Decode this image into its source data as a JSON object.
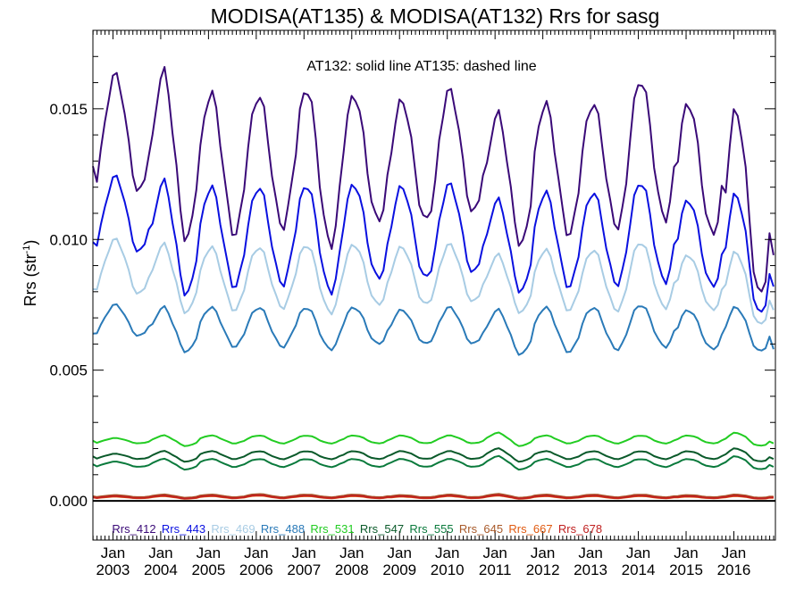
{
  "chart_data": {
    "type": "line",
    "title": "MODISA(AT135) & MODISA(AT132)  Rrs for sasg",
    "annotation": "AT132: solid line   AT135: dashed line",
    "ylabel": {
      "base": "Rrs (str",
      "sup": "-1",
      "close": ")"
    },
    "xlabel": "",
    "ylim": [
      -0.0015,
      0.018
    ],
    "xlim": [
      2002.58,
      2016.87
    ],
    "yticks": [
      0.0,
      0.005,
      0.01,
      0.015
    ],
    "ytick_labels": [
      "0.000",
      "0.005",
      "0.010",
      "0.015"
    ],
    "xticks": [
      2003,
      2004,
      2005,
      2006,
      2007,
      2008,
      2009,
      2010,
      2011,
      2012,
      2013,
      2014,
      2015,
      2016
    ],
    "xtick_month": "Jan",
    "xtick_labels": [
      "2003",
      "2004",
      "2005",
      "2006",
      "2007",
      "2008",
      "2009",
      "2010",
      "2011",
      "2012",
      "2013",
      "2014",
      "2015",
      "2016"
    ],
    "legend_placement": "bottom inside plot, single row",
    "zero_line": true,
    "series": [
      {
        "name": "Rrs_412",
        "color": "#3a0a78",
        "peak": [
          0.0163,
          0.0164,
          0.0156,
          0.0155,
          0.0158,
          0.0155,
          0.0153,
          0.0157,
          0.0148,
          0.0152,
          0.0152,
          0.0161,
          0.0152,
          0.0149
        ],
        "trough": [
          0.0118,
          0.01,
          0.0102,
          0.0105,
          0.0098,
          0.0107,
          0.0107,
          0.011,
          0.0098,
          0.0102,
          0.0105,
          0.0108,
          0.0102,
          0.0078
        ],
        "start": 0.0128,
        "end": 0.0094
      },
      {
        "name": "Rrs_443",
        "color": "#0a10e0",
        "peak": [
          0.0124,
          0.0122,
          0.012,
          0.012,
          0.0121,
          0.0121,
          0.012,
          0.0121,
          0.0115,
          0.0118,
          0.0118,
          0.0122,
          0.0115,
          0.0117
        ],
        "trough": [
          0.0095,
          0.0079,
          0.0082,
          0.0083,
          0.008,
          0.0085,
          0.0085,
          0.0087,
          0.008,
          0.0082,
          0.0083,
          0.0084,
          0.0082,
          0.0071
        ],
        "start": 0.0099,
        "end": 0.0082
      },
      {
        "name": "Rrs_469",
        "color": "#a8cce4",
        "peak": [
          0.01,
          0.0098,
          0.0097,
          0.0097,
          0.0098,
          0.0098,
          0.0097,
          0.0098,
          0.0094,
          0.0096,
          0.0096,
          0.0099,
          0.0094,
          0.0095
        ],
        "trough": [
          0.0079,
          0.0072,
          0.0073,
          0.0074,
          0.0072,
          0.0075,
          0.0075,
          0.0076,
          0.0072,
          0.0073,
          0.0073,
          0.0074,
          0.0073,
          0.0067
        ],
        "start": 0.0081,
        "end": 0.0073
      },
      {
        "name": "Rrs_488",
        "color": "#2a7ab8",
        "peak": [
          0.0075,
          0.0074,
          0.0074,
          0.0074,
          0.0074,
          0.0074,
          0.0073,
          0.0074,
          0.0073,
          0.0074,
          0.0074,
          0.0075,
          0.0073,
          0.0074
        ],
        "trough": [
          0.0063,
          0.0057,
          0.0059,
          0.0059,
          0.0058,
          0.006,
          0.006,
          0.006,
          0.0056,
          0.0057,
          0.0058,
          0.0059,
          0.0058,
          0.0057
        ],
        "start": 0.0064,
        "end": 0.0058
      },
      {
        "name": "Rrs_531",
        "color": "#22cc22",
        "peak": [
          0.0024,
          0.0025,
          0.0025,
          0.0025,
          0.0025,
          0.0025,
          0.0025,
          0.0025,
          0.0026,
          0.0025,
          0.0025,
          0.0025,
          0.0025,
          0.0026
        ],
        "trough": [
          0.0022,
          0.0021,
          0.0022,
          0.0022,
          0.0022,
          0.0022,
          0.0022,
          0.0022,
          0.0021,
          0.0022,
          0.0022,
          0.0022,
          0.0022,
          0.0021
        ],
        "start": 0.0023,
        "end": 0.0022
      },
      {
        "name": "Rrs_547",
        "color": "#0a5a2a",
        "peak": [
          0.0018,
          0.0019,
          0.0019,
          0.0019,
          0.0019,
          0.0019,
          0.0019,
          0.0019,
          0.002,
          0.0019,
          0.0019,
          0.0019,
          0.0019,
          0.002
        ],
        "trough": [
          0.0016,
          0.0015,
          0.0016,
          0.0016,
          0.0016,
          0.0016,
          0.0016,
          0.0016,
          0.0015,
          0.0016,
          0.0016,
          0.0016,
          0.0016,
          0.0015
        ],
        "start": 0.0017,
        "end": 0.0016
      },
      {
        "name": "Rrs_555",
        "color": "#0a7a3c",
        "peak": [
          0.0015,
          0.0016,
          0.0016,
          0.0016,
          0.0016,
          0.0016,
          0.0016,
          0.0016,
          0.0017,
          0.0016,
          0.0016,
          0.0016,
          0.0016,
          0.0017
        ],
        "trough": [
          0.0013,
          0.0012,
          0.0013,
          0.0013,
          0.0013,
          0.0013,
          0.0013,
          0.0013,
          0.0012,
          0.0013,
          0.0013,
          0.0013,
          0.0013,
          0.0012
        ],
        "start": 0.0014,
        "end": 0.0013
      },
      {
        "name": "Rrs_645",
        "color": "#a85a2a",
        "peak": [
          0.00022,
          0.00024,
          0.00024,
          0.00026,
          0.00024,
          0.00024,
          0.00022,
          0.00024,
          0.00026,
          0.00024,
          0.00024,
          0.00024,
          0.00022,
          0.00024
        ],
        "trough": [
          0.00014,
          0.00012,
          0.00014,
          0.00014,
          0.00014,
          0.00014,
          0.00014,
          0.00014,
          0.00012,
          0.00014,
          0.00014,
          0.00014,
          0.00014,
          0.00012
        ],
        "start": 0.00018,
        "end": 0.00016
      },
      {
        "name": "Rrs_667",
        "color": "#e05a10",
        "peak": [
          0.00016,
          0.00018,
          0.00018,
          0.0002,
          0.00018,
          0.00018,
          0.00016,
          0.00018,
          0.0002,
          0.00018,
          0.00018,
          0.00018,
          0.00016,
          0.00018
        ],
        "trough": [
          0.0001,
          8e-05,
          0.0001,
          0.0001,
          0.0001,
          0.0001,
          0.0001,
          0.0001,
          8e-05,
          0.0001,
          0.0001,
          0.0001,
          0.0001,
          8e-05
        ],
        "start": 0.00013,
        "end": 0.00012
      },
      {
        "name": "Rrs_678",
        "color": "#c02020",
        "peak": [
          0.00018,
          0.0002,
          0.0002,
          0.00022,
          0.0002,
          0.0002,
          0.00018,
          0.0002,
          0.00022,
          0.0002,
          0.0002,
          0.0002,
          0.00018,
          0.0002
        ],
        "trough": [
          0.00011,
          9e-05,
          0.00011,
          0.00011,
          0.00011,
          0.00011,
          0.00011,
          0.00011,
          9e-05,
          0.00011,
          0.00011,
          0.00011,
          0.00011,
          9e-05
        ],
        "start": 0.00014,
        "end": 0.00013
      }
    ]
  }
}
